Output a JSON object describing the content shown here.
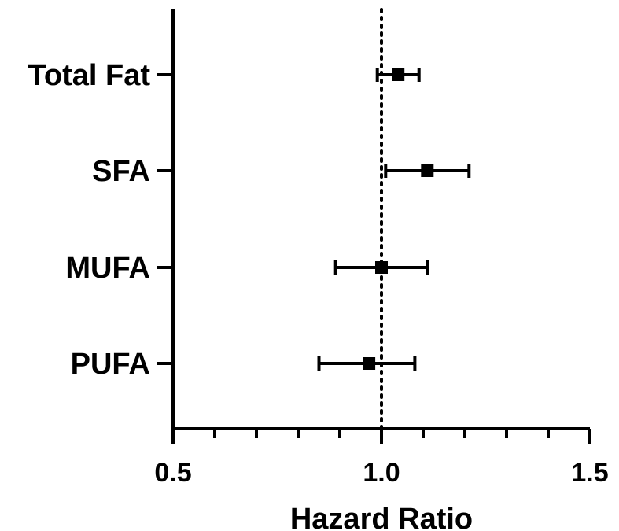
{
  "chart_data": {
    "type": "forest",
    "categories": [
      "Total Fat",
      "SFA",
      "MUFA",
      "PUFA"
    ],
    "estimates": [
      1.04,
      1.11,
      1.0,
      0.97
    ],
    "ci_lower": [
      0.99,
      1.01,
      0.89,
      0.85
    ],
    "ci_upper": [
      1.09,
      1.21,
      1.11,
      1.08
    ],
    "reference_line": 1.0,
    "xlim": [
      0.5,
      1.5
    ],
    "x_major_ticks": [
      0.5,
      1.0,
      1.5
    ],
    "x_tick_labels": [
      "0.5",
      "1.0",
      "1.5"
    ],
    "x_minor_step": 0.1,
    "xlabel": "Hazard Ratio",
    "title": "",
    "ylabel": "",
    "colors": {
      "marks": "#000000",
      "axis": "#000000",
      "reference": "#000000"
    }
  }
}
